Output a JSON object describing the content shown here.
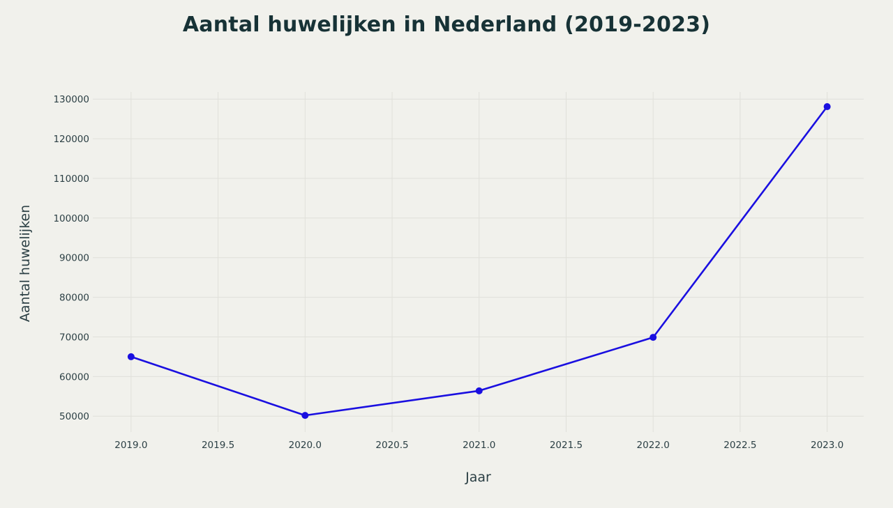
{
  "chart_data": {
    "type": "line",
    "title": "Aantal huwelijken in Nederland (2019-2023)",
    "xlabel": "Jaar",
    "ylabel": "Aantal huwelijken",
    "x": [
      2019,
      2020,
      2021,
      2022,
      2023
    ],
    "series": [
      {
        "values": [
          65000,
          50200,
          56400,
          69900,
          128100
        ]
      }
    ],
    "xlim": [
      2018.78,
      2023.21
    ],
    "ylim": [
      46000,
      131800
    ],
    "x_ticks": [
      "2019.0",
      "2019.5",
      "2020.0",
      "2020.5",
      "2021.0",
      "2021.5",
      "2022.0",
      "2022.5",
      "2023.0"
    ],
    "y_ticks": [
      "50000",
      "60000",
      "70000",
      "80000",
      "90000",
      "100000",
      "110000",
      "120000",
      "130000"
    ],
    "grid": true,
    "line_color": "#1a0fe0",
    "background_color": "#f1f1ec"
  }
}
